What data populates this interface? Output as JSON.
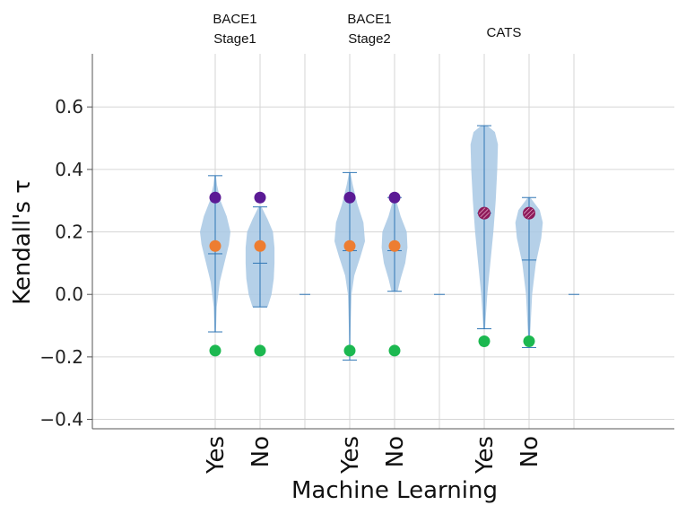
{
  "chart_data": {
    "type": "violin",
    "xlabel": "Machine Learning",
    "ylabel": "Kendall's τ",
    "ylim": [
      -0.43,
      0.77
    ],
    "yticks": [
      -0.4,
      -0.2,
      0.0,
      0.2,
      0.4,
      0.6
    ],
    "ytick_labels": [
      "−0.4",
      "−0.2",
      "0.0",
      "0.2",
      "0.4",
      "0.6"
    ],
    "grid": true,
    "x_slots": 9,
    "groups": [
      {
        "label_lines": [
          "BACE1",
          "Stage1"
        ],
        "label_slot": 1
      },
      {
        "label_lines": [
          "BACE1",
          "Stage2"
        ],
        "label_slot": 4
      },
      {
        "label_lines": [
          "CATS"
        ],
        "label_slot": 7
      }
    ],
    "categories": [
      {
        "label": "Yes",
        "slot": 1,
        "min": -0.12,
        "max": 0.38,
        "median": 0.13,
        "density": [
          [
            -0.12,
            0.005
          ],
          [
            -0.04,
            0.01
          ],
          [
            0.04,
            0.03
          ],
          [
            0.1,
            0.06
          ],
          [
            0.16,
            0.09
          ],
          [
            0.2,
            0.1
          ],
          [
            0.25,
            0.075
          ],
          [
            0.3,
            0.035
          ],
          [
            0.35,
            0.012
          ],
          [
            0.38,
            0.005
          ]
        ]
      },
      {
        "label": "No",
        "slot": 2,
        "min": -0.04,
        "max": 0.28,
        "median": 0.1,
        "density": [
          [
            -0.04,
            0.05
          ],
          [
            0.0,
            0.075
          ],
          [
            0.05,
            0.09
          ],
          [
            0.1,
            0.095
          ],
          [
            0.15,
            0.095
          ],
          [
            0.2,
            0.085
          ],
          [
            0.24,
            0.05
          ],
          [
            0.28,
            0.01
          ]
        ]
      },
      {
        "label": "",
        "slot": 3,
        "empty": true
      },
      {
        "label": "Yes",
        "slot": 4,
        "min": -0.21,
        "max": 0.39,
        "median": 0.14,
        "density": [
          [
            -0.21,
            0.002
          ],
          [
            -0.1,
            0.006
          ],
          [
            0.0,
            0.012
          ],
          [
            0.06,
            0.03
          ],
          [
            0.12,
            0.07
          ],
          [
            0.17,
            0.1
          ],
          [
            0.23,
            0.09
          ],
          [
            0.29,
            0.05
          ],
          [
            0.35,
            0.02
          ],
          [
            0.39,
            0.004
          ]
        ]
      },
      {
        "label": "No",
        "slot": 5,
        "min": 0.01,
        "max": 0.31,
        "median": 0.14,
        "density": [
          [
            0.01,
            0.02
          ],
          [
            0.05,
            0.04
          ],
          [
            0.1,
            0.07
          ],
          [
            0.15,
            0.085
          ],
          [
            0.2,
            0.08
          ],
          [
            0.25,
            0.04
          ],
          [
            0.31,
            0.005
          ]
        ]
      },
      {
        "label": "",
        "slot": 6,
        "empty": true
      },
      {
        "label": "Yes",
        "slot": 7,
        "min": -0.11,
        "max": 0.54,
        "median": 0.26,
        "density": [
          [
            -0.11,
            0.005
          ],
          [
            0.0,
            0.02
          ],
          [
            0.1,
            0.04
          ],
          [
            0.2,
            0.06
          ],
          [
            0.3,
            0.075
          ],
          [
            0.4,
            0.085
          ],
          [
            0.48,
            0.09
          ],
          [
            0.52,
            0.07
          ],
          [
            0.54,
            0.02
          ]
        ]
      },
      {
        "label": "No",
        "slot": 8,
        "min": -0.17,
        "max": 0.31,
        "median": 0.11,
        "density": [
          [
            -0.17,
            0.002
          ],
          [
            -0.1,
            0.01
          ],
          [
            0.0,
            0.02
          ],
          [
            0.1,
            0.045
          ],
          [
            0.18,
            0.08
          ],
          [
            0.23,
            0.09
          ],
          [
            0.27,
            0.07
          ],
          [
            0.31,
            0.008
          ]
        ]
      },
      {
        "label": "",
        "slot": 9,
        "empty": true
      }
    ],
    "markers": [
      {
        "slot": 1,
        "y": 0.31,
        "color": "#5b1a95"
      },
      {
        "slot": 1,
        "y": 0.155,
        "color": "#ed7d31"
      },
      {
        "slot": 1,
        "y": -0.18,
        "color": "#1cb850"
      },
      {
        "slot": 2,
        "y": 0.31,
        "color": "#5b1a95"
      },
      {
        "slot": 2,
        "y": 0.155,
        "color": "#ed7d31"
      },
      {
        "slot": 2,
        "y": -0.18,
        "color": "#1cb850"
      },
      {
        "slot": 4,
        "y": 0.31,
        "color": "#5b1a95"
      },
      {
        "slot": 4,
        "y": 0.155,
        "color": "#ed7d31"
      },
      {
        "slot": 4,
        "y": -0.18,
        "color": "#1cb850"
      },
      {
        "slot": 5,
        "y": 0.31,
        "color": "#5b1a95"
      },
      {
        "slot": 5,
        "y": 0.155,
        "color": "#ed7d31"
      },
      {
        "slot": 5,
        "y": -0.18,
        "color": "#1cb850"
      },
      {
        "slot": 7,
        "y": 0.26,
        "color": "#8e1a5a",
        "hatched": true
      },
      {
        "slot": 7,
        "y": -0.15,
        "color": "#1cb850"
      },
      {
        "slot": 8,
        "y": 0.26,
        "color": "#8e1a5a",
        "hatched": true
      },
      {
        "slot": 8,
        "y": -0.15,
        "color": "#1cb850"
      }
    ],
    "colors": {
      "violin_fill": "#a8c8e4",
      "violin_line": "#2f76b5",
      "grid": "#d6d6d6",
      "axis": "#555555"
    }
  }
}
